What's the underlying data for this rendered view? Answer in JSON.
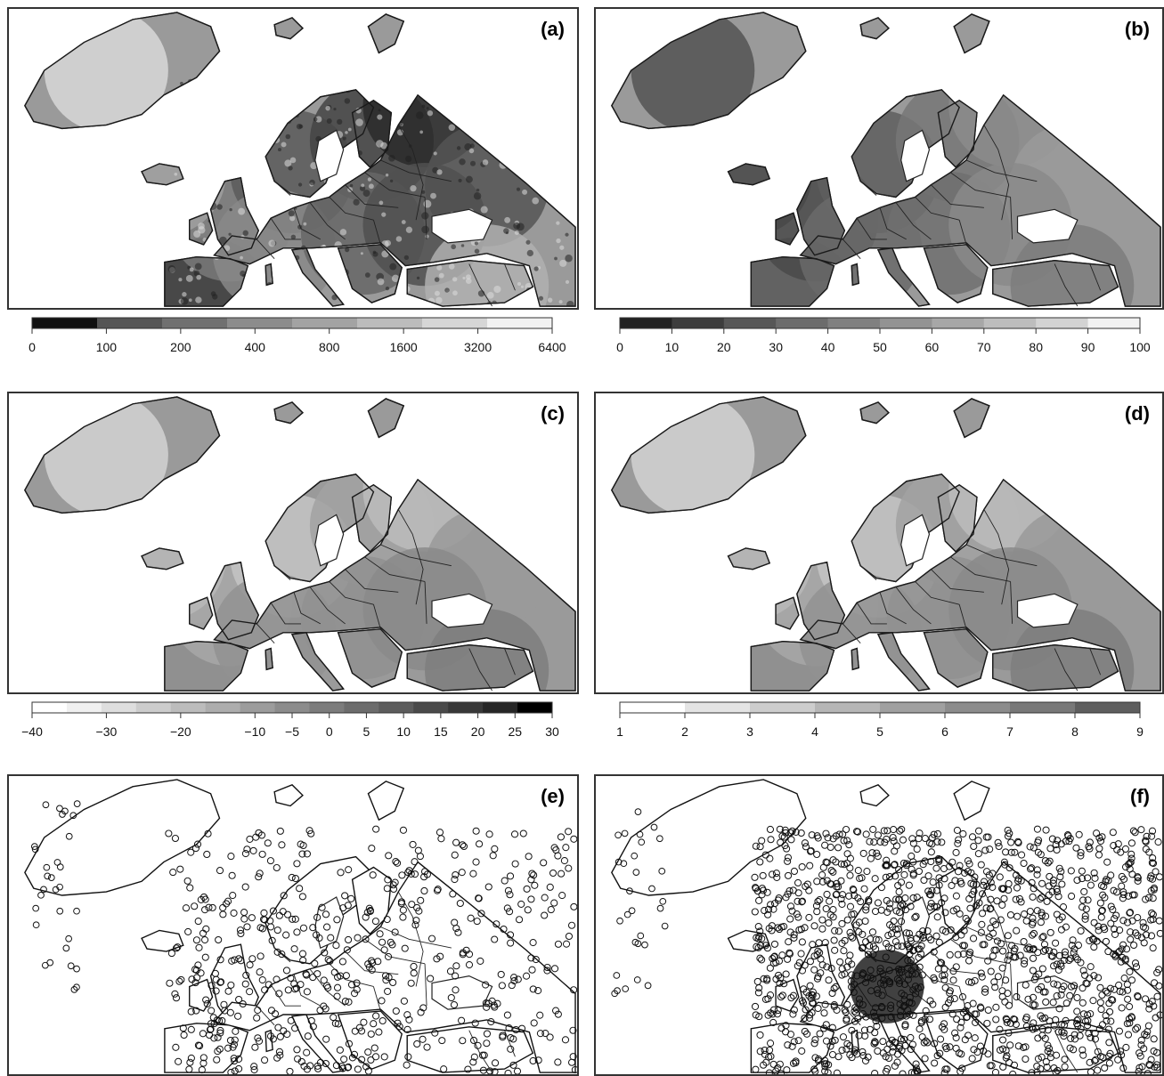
{
  "panels": [
    {
      "label": "(a)",
      "fill": "relief",
      "stations": "none"
    },
    {
      "label": "(b)",
      "fill": "dark",
      "stations": "none"
    },
    {
      "label": "(c)",
      "fill": "mid",
      "stations": "none"
    },
    {
      "label": "(d)",
      "fill": "mid",
      "stations": "none"
    },
    {
      "label": "(e)",
      "fill": "none",
      "stations": "sparse"
    },
    {
      "label": "(f)",
      "fill": "none",
      "stations": "dense"
    }
  ],
  "colorbars": [
    {
      "name": "elevation",
      "ticks": [
        "0",
        "100",
        "200",
        "400",
        "800",
        "1600",
        "3200",
        "6400"
      ],
      "colors": [
        "#111111",
        "#555555",
        "#707070",
        "#8c8c8c",
        "#a3a3a3",
        "#bcbcbc",
        "#d6d6d6",
        "#f2f2f2"
      ]
    },
    {
      "name": "percent",
      "ticks": [
        "0",
        "10",
        "20",
        "30",
        "40",
        "50",
        "60",
        "70",
        "80",
        "90",
        "100"
      ],
      "colors": [
        "#222222",
        "#3d3d3d",
        "#575757",
        "#6c6c6c",
        "#808080",
        "#939393",
        "#a7a7a7",
        "#bdbdbd",
        "#d3d3d3",
        "#f2f2f2"
      ]
    },
    {
      "name": "temperature",
      "ticks": [
        "−40",
        "−30",
        "−20",
        "−10",
        "−5",
        "0",
        "5",
        "10",
        "15",
        "20",
        "25",
        "30"
      ],
      "tick_positions": [
        -40,
        -30,
        -20,
        -10,
        -5,
        0,
        5,
        10,
        15,
        20,
        25,
        30
      ],
      "colors": [
        "#ffffff",
        "#f0f0f0",
        "#dedede",
        "#cccccc",
        "#bcbcbc",
        "#adadad",
        "#9c9c9c",
        "#8c8c8c",
        "#7c7c7c",
        "#6c6c6c",
        "#5c5c5c",
        "#4a4a4a",
        "#383838",
        "#262626",
        "#000000"
      ]
    },
    {
      "name": "months",
      "ticks": [
        "1",
        "2",
        "3",
        "4",
        "5",
        "6",
        "7",
        "8",
        "9"
      ],
      "colors": [
        "#ffffff",
        "#e4e4e4",
        "#cdcdcd",
        "#b6b6b6",
        "#a0a0a0",
        "#8c8c8c",
        "#787878",
        "#5e5e5e"
      ]
    }
  ]
}
